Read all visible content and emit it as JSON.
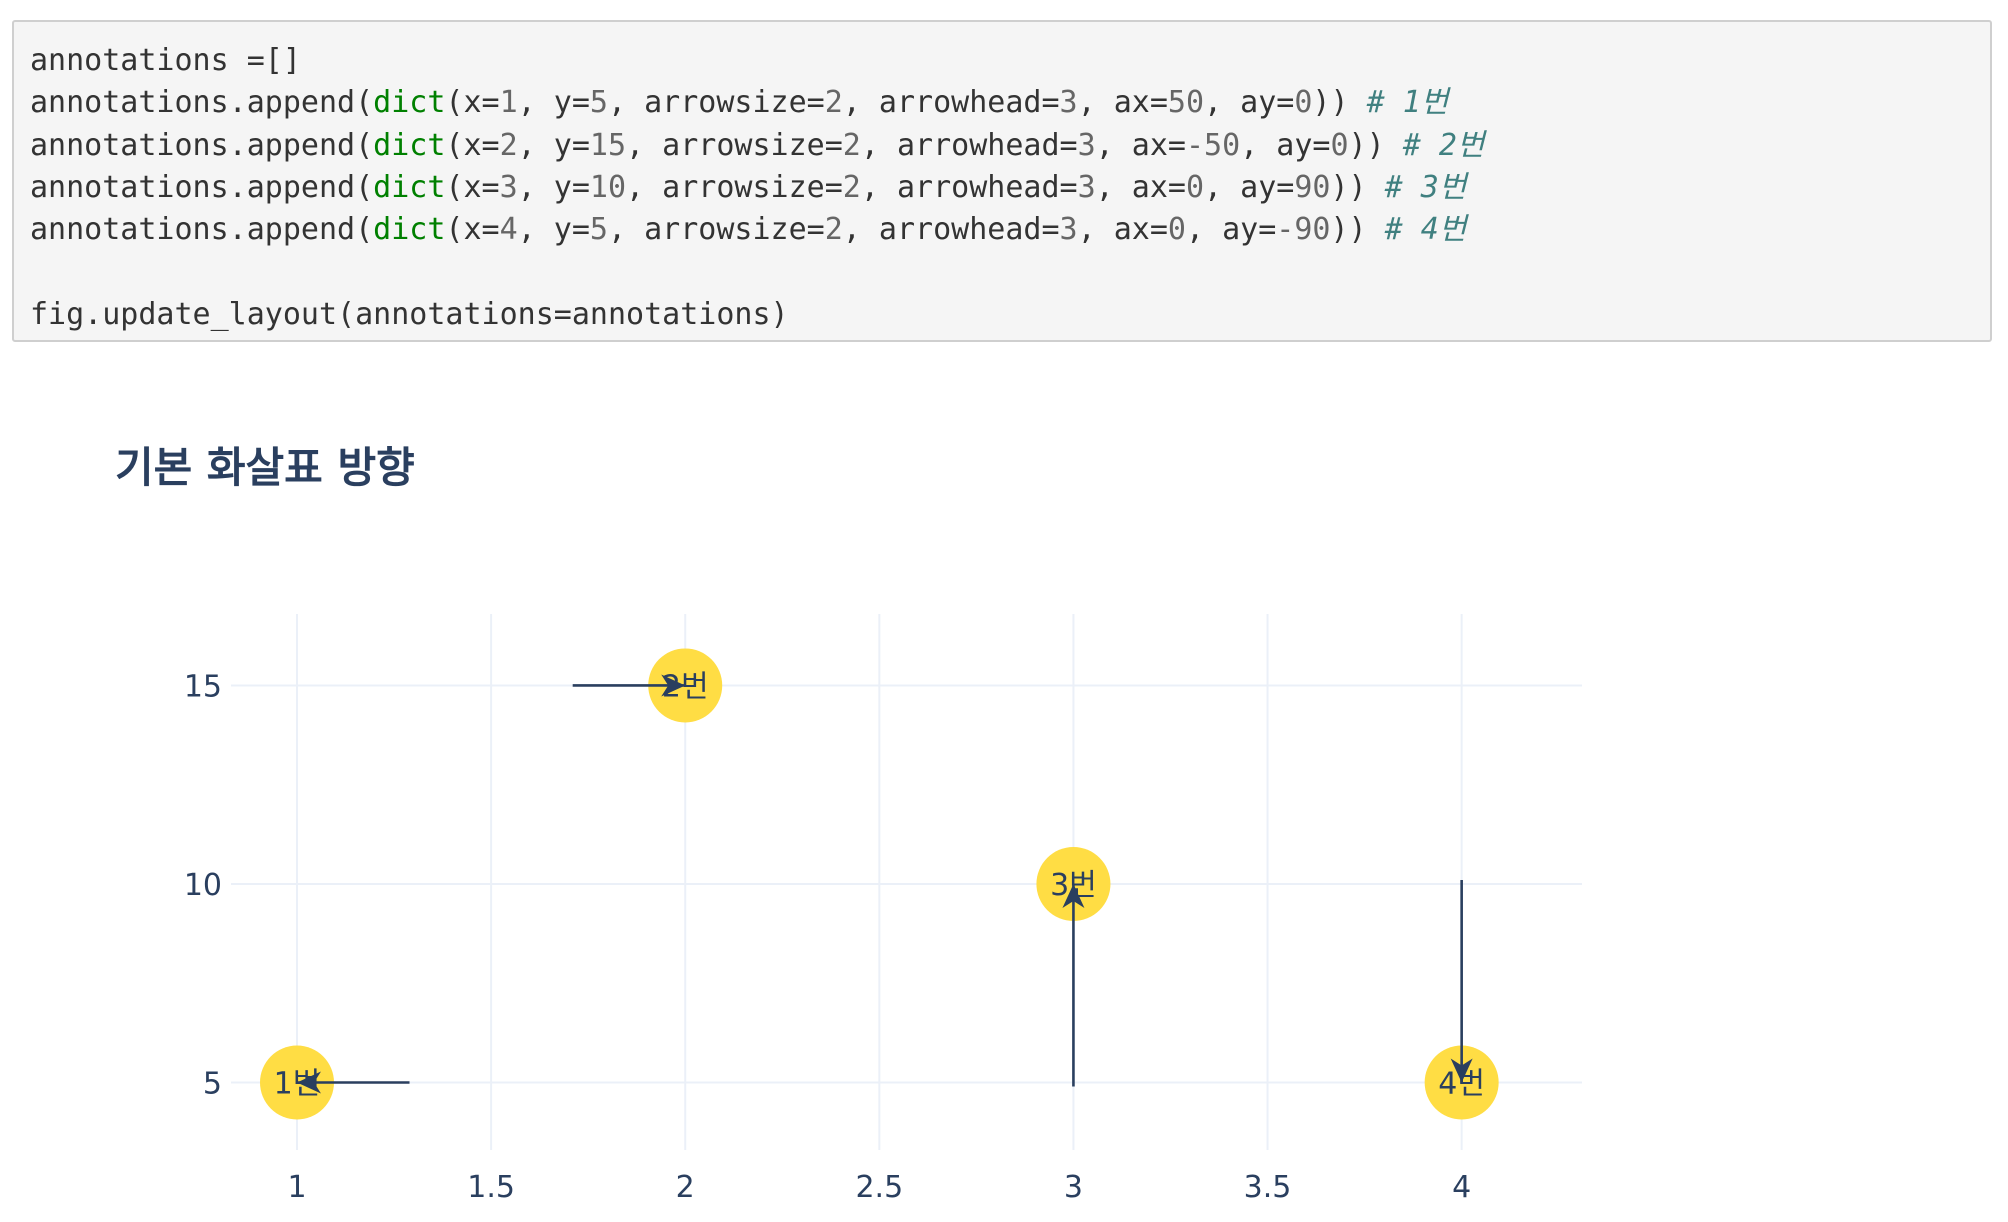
{
  "code": {
    "lines": [
      [
        {
          "t": "annotations =[]",
          "c": ""
        }
      ],
      [
        {
          "t": "annotations.append(",
          "c": ""
        },
        {
          "t": "dict",
          "c": "kw"
        },
        {
          "t": "(x=",
          "c": ""
        },
        {
          "t": "1",
          "c": "num"
        },
        {
          "t": ", y=",
          "c": ""
        },
        {
          "t": "5",
          "c": "num"
        },
        {
          "t": ", arrowsize=",
          "c": ""
        },
        {
          "t": "2",
          "c": "num"
        },
        {
          "t": ", arrowhead=",
          "c": ""
        },
        {
          "t": "3",
          "c": "num"
        },
        {
          "t": ", ax=",
          "c": ""
        },
        {
          "t": "50",
          "c": "num"
        },
        {
          "t": ", ay=",
          "c": ""
        },
        {
          "t": "0",
          "c": "num"
        },
        {
          "t": ")) ",
          "c": ""
        },
        {
          "t": "# 1번",
          "c": "com"
        }
      ],
      [
        {
          "t": "annotations.append(",
          "c": ""
        },
        {
          "t": "dict",
          "c": "kw"
        },
        {
          "t": "(x=",
          "c": ""
        },
        {
          "t": "2",
          "c": "num"
        },
        {
          "t": ", y=",
          "c": ""
        },
        {
          "t": "15",
          "c": "num"
        },
        {
          "t": ", arrowsize=",
          "c": ""
        },
        {
          "t": "2",
          "c": "num"
        },
        {
          "t": ", arrowhead=",
          "c": ""
        },
        {
          "t": "3",
          "c": "num"
        },
        {
          "t": ", ax=",
          "c": ""
        },
        {
          "t": "-50",
          "c": "num"
        },
        {
          "t": ", ay=",
          "c": ""
        },
        {
          "t": "0",
          "c": "num"
        },
        {
          "t": ")) ",
          "c": ""
        },
        {
          "t": "# 2번",
          "c": "com"
        }
      ],
      [
        {
          "t": "annotations.append(",
          "c": ""
        },
        {
          "t": "dict",
          "c": "kw"
        },
        {
          "t": "(x=",
          "c": ""
        },
        {
          "t": "3",
          "c": "num"
        },
        {
          "t": ", y=",
          "c": ""
        },
        {
          "t": "10",
          "c": "num"
        },
        {
          "t": ", arrowsize=",
          "c": ""
        },
        {
          "t": "2",
          "c": "num"
        },
        {
          "t": ", arrowhead=",
          "c": ""
        },
        {
          "t": "3",
          "c": "num"
        },
        {
          "t": ", ax=",
          "c": ""
        },
        {
          "t": "0",
          "c": "num"
        },
        {
          "t": ", ay=",
          "c": ""
        },
        {
          "t": "90",
          "c": "num"
        },
        {
          "t": ")) ",
          "c": ""
        },
        {
          "t": "# 3번",
          "c": "com"
        }
      ],
      [
        {
          "t": "annotations.append(",
          "c": ""
        },
        {
          "t": "dict",
          "c": "kw"
        },
        {
          "t": "(x=",
          "c": ""
        },
        {
          "t": "4",
          "c": "num"
        },
        {
          "t": ", y=",
          "c": ""
        },
        {
          "t": "5",
          "c": "num"
        },
        {
          "t": ", arrowsize=",
          "c": ""
        },
        {
          "t": "2",
          "c": "num"
        },
        {
          "t": ", arrowhead=",
          "c": ""
        },
        {
          "t": "3",
          "c": "num"
        },
        {
          "t": ", ax=",
          "c": ""
        },
        {
          "t": "0",
          "c": "num"
        },
        {
          "t": ", ay=",
          "c": ""
        },
        {
          "t": "-90",
          "c": "num"
        },
        {
          "t": ")) ",
          "c": ""
        },
        {
          "t": "# 4번",
          "c": "com"
        }
      ],
      [
        {
          "t": "",
          "c": ""
        }
      ],
      [
        {
          "t": "fig.update_layout(annotations=annotations)",
          "c": ""
        }
      ]
    ]
  },
  "chart_data": {
    "type": "scatter",
    "title": "기본 화살표 방향",
    "xlabel": "",
    "ylabel": "",
    "xlim": [
      0.83,
      4.31
    ],
    "ylim": [
      3.3,
      16.8
    ],
    "xticks": [
      "1",
      "1.5",
      "2",
      "2.5",
      "3",
      "3.5",
      "4"
    ],
    "xtick_values": [
      1,
      1.5,
      2,
      2.5,
      3,
      3.5,
      4
    ],
    "yticks": [
      "5",
      "10",
      "15"
    ],
    "ytick_values": [
      5,
      10,
      15
    ],
    "grid": true,
    "marker_color": "#FFDD44",
    "arrow_color": "#2A3F5F",
    "points": [
      {
        "x": 1,
        "y": 5,
        "label": "1번",
        "ax": 50,
        "ay": 0
      },
      {
        "x": 2,
        "y": 15,
        "label": "2번",
        "ax": -50,
        "ay": 0
      },
      {
        "x": 3,
        "y": 10,
        "label": "3번",
        "ax": 0,
        "ay": 90
      },
      {
        "x": 4,
        "y": 5,
        "label": "4번",
        "ax": 0,
        "ay": -90
      }
    ]
  }
}
